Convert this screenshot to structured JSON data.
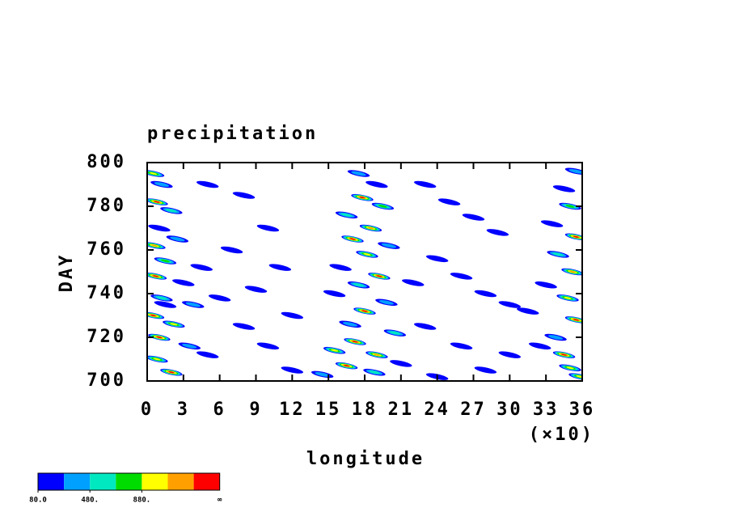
{
  "chart_data": {
    "type": "contour",
    "title": "precipitation",
    "y_label": "DAY",
    "x_label": "longitude",
    "x_multiplier_label": "(×10)",
    "xlim": [
      0,
      36
    ],
    "xticks": [
      0,
      3,
      6,
      9,
      12,
      15,
      18,
      21,
      24,
      27,
      30,
      33,
      36
    ],
    "ylim": [
      700,
      800
    ],
    "yticks": [
      700,
      720,
      740,
      760,
      780,
      800
    ],
    "colorbar": {
      "levels": [
        80,
        280,
        480,
        680,
        880,
        1080,
        1280
      ],
      "colors": [
        "#0000ff",
        "#00a0ff",
        "#00e8c0",
        "#00dc00",
        "#ffff00",
        "#ffa000",
        "#ff0000"
      ],
      "ticks": [
        {
          "value": 80,
          "label": "80.0"
        },
        {
          "value": 480,
          "label": "480."
        },
        {
          "value": 880,
          "label": "880."
        }
      ],
      "infinity_label": "∞"
    },
    "cells": {
      "x": [
        0.5,
        1.2,
        0.8,
        2.0,
        1.0,
        0.6,
        2.5,
        1.5,
        0.7,
        3.0,
        1.2,
        0.5,
        2.2,
        1.0,
        3.5,
        0.8,
        2.0,
        1.5,
        4.5,
        3.8,
        35.5,
        34.5,
        35.0,
        33.5,
        35.5,
        34.0,
        35.2,
        33.0,
        34.8,
        35.5,
        33.8,
        34.5,
        35.0,
        32.5,
        35.8,
        31.5,
        17.5,
        19.0,
        17.8,
        19.5,
        16.5,
        18.5,
        17.0,
        20.0,
        18.2,
        16.0,
        19.2,
        17.5,
        15.5,
        19.8,
        18.0,
        16.8,
        20.5,
        17.2,
        15.5,
        19.0,
        16.5,
        18.8,
        21.0,
        14.5,
        5,
        8,
        10,
        7,
        11,
        9,
        6,
        12,
        8,
        10,
        5,
        12,
        23,
        25,
        27,
        29,
        24,
        26,
        28,
        30,
        23,
        26,
        28,
        24,
        30,
        22
      ],
      "y": [
        795,
        790,
        782,
        778,
        770,
        762,
        765,
        755,
        748,
        745,
        738,
        730,
        726,
        720,
        716,
        710,
        704,
        735,
        752,
        735,
        796,
        788,
        780,
        772,
        766,
        758,
        750,
        744,
        738,
        728,
        720,
        712,
        706,
        716,
        702,
        732,
        795,
        790,
        784,
        780,
        776,
        770,
        765,
        762,
        758,
        752,
        748,
        744,
        740,
        736,
        732,
        726,
        722,
        718,
        714,
        712,
        707,
        704,
        708,
        703,
        790,
        785,
        770,
        760,
        752,
        742,
        738,
        730,
        725,
        716,
        712,
        705,
        790,
        782,
        775,
        768,
        756,
        748,
        740,
        735,
        725,
        716,
        705,
        702,
        712,
        745
      ],
      "values": [
        900,
        300,
        1300,
        500,
        200,
        1100,
        300,
        700,
        1300,
        200,
        600,
        1300,
        900,
        1300,
        300,
        1000,
        1300,
        200,
        150,
        400,
        300,
        200,
        700,
        150,
        1300,
        600,
        1100,
        200,
        900,
        1300,
        400,
        1300,
        1000,
        200,
        900,
        150,
        300,
        200,
        1300,
        700,
        500,
        1100,
        1300,
        300,
        900,
        200,
        1300,
        600,
        200,
        400,
        1300,
        300,
        500,
        1300,
        900,
        1100,
        1300,
        600,
        200,
        300,
        100,
        150,
        100,
        120,
        100,
        150,
        100,
        120,
        100,
        150,
        100,
        120,
        100,
        150,
        100,
        120,
        100,
        150,
        100,
        120,
        100,
        150,
        120,
        100,
        100,
        150
      ]
    }
  }
}
